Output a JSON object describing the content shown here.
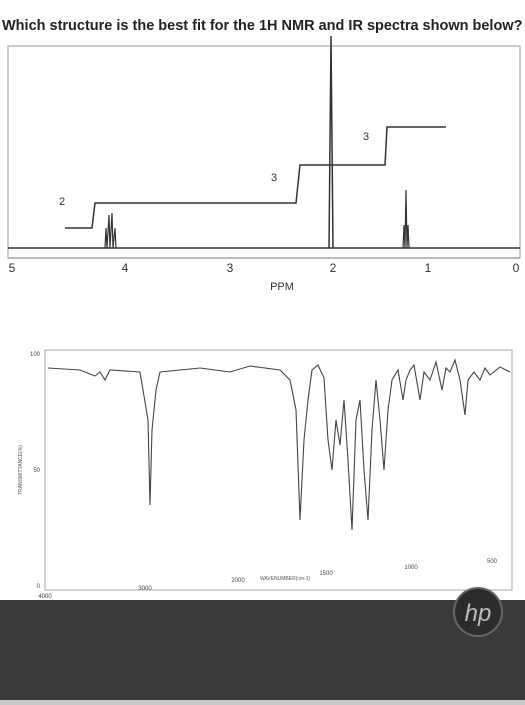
{
  "question": "Which structure is the best fit for the 1H NMR and IR spectra shown below?",
  "nmr": {
    "xlabel": "PPM",
    "xticks": [
      "5",
      "4",
      "3",
      "2",
      "1",
      "0"
    ],
    "integrations": [
      "2",
      "3",
      "3"
    ]
  },
  "ir": {
    "ylabel": "TRANSMITTANCE(%)",
    "xlabel": "WAVENUMBER(cm-1)",
    "yticks": [
      "100",
      "50",
      "0"
    ],
    "xticks": [
      "4000",
      "3000",
      "2000",
      "1500",
      "1000",
      "500"
    ]
  },
  "brand": "hp"
}
